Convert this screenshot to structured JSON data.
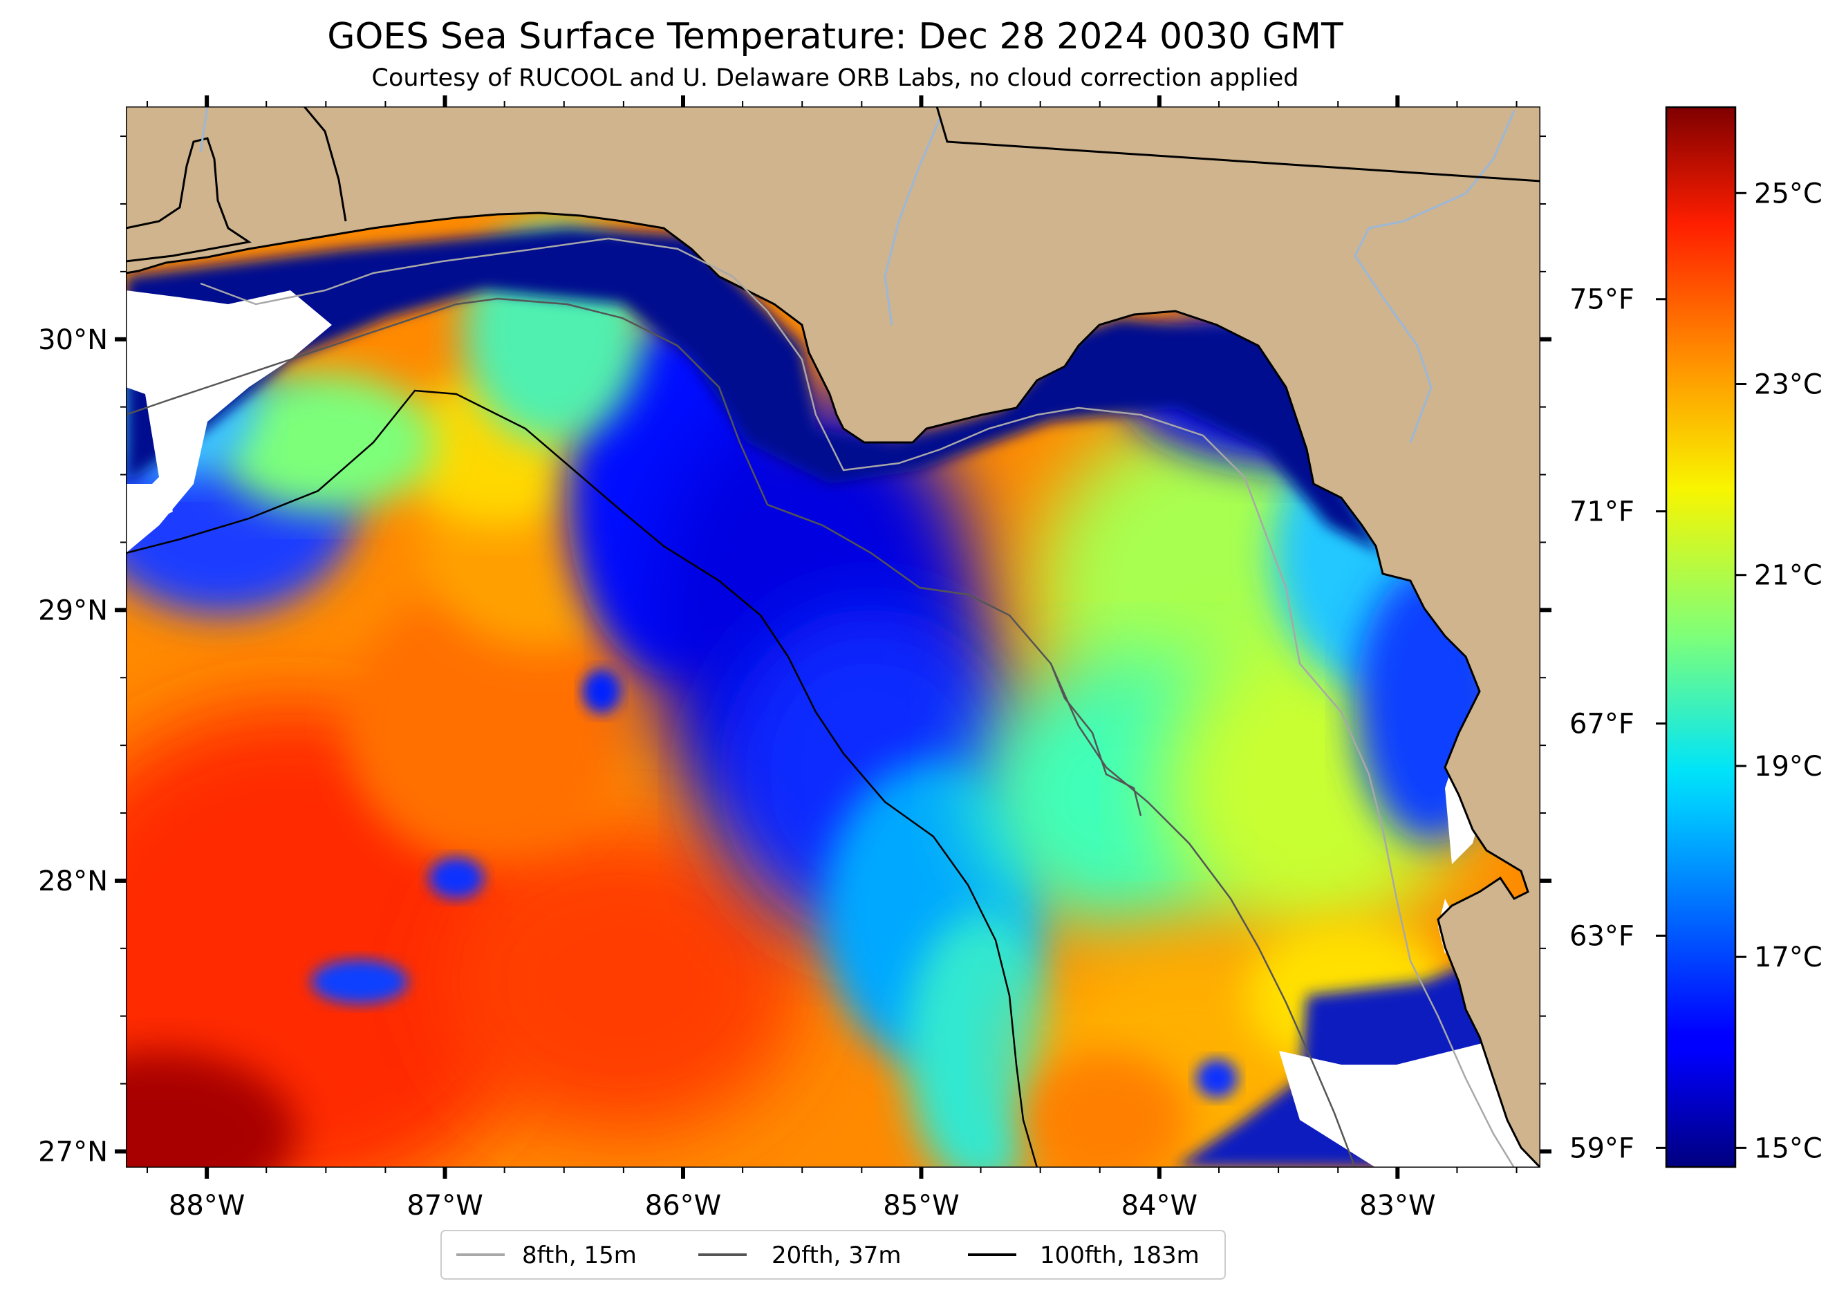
{
  "title": "GOES Sea Surface Temperature: Dec 28 2024 0030 GMT",
  "subtitle": "Courtesy of RUCOOL and U. Delaware ORB Labs, no cloud correction applied",
  "map": {
    "lon_range": [
      -88.34,
      -82.4
    ],
    "lat_range": [
      26.94,
      30.86
    ],
    "lon_ticks": [
      {
        "value": -88,
        "label": "88°W"
      },
      {
        "value": -87,
        "label": "87°W"
      },
      {
        "value": -86,
        "label": "86°W"
      },
      {
        "value": -85,
        "label": "85°W"
      },
      {
        "value": -84,
        "label": "84°W"
      },
      {
        "value": -83,
        "label": "83°W"
      }
    ],
    "lat_ticks": [
      {
        "value": 30,
        "label": "30°N"
      },
      {
        "value": 29,
        "label": "29°N"
      },
      {
        "value": 28,
        "label": "28°N"
      },
      {
        "value": 27,
        "label": "27°N"
      }
    ],
    "colors": {
      "land": "#cfb48e",
      "no_data": "#ffffff",
      "rivers": "#9db7d6",
      "coastline": "#000000"
    }
  },
  "fahrenheit_scale": {
    "ticks": [
      {
        "value_c": 15.0,
        "label": "59°F"
      },
      {
        "value_c": 17.2222,
        "label": "63°F"
      },
      {
        "value_c": 19.4444,
        "label": "67°F"
      },
      {
        "value_c": 21.6667,
        "label": "71°F"
      },
      {
        "value_c": 23.8889,
        "label": "75°F"
      }
    ]
  },
  "colorbar": {
    "colormap": "jet",
    "range_c": [
      14.8,
      25.9
    ],
    "ticks": [
      {
        "value": 15,
        "label": "15°C"
      },
      {
        "value": 17,
        "label": "17°C"
      },
      {
        "value": 19,
        "label": "19°C"
      },
      {
        "value": 21,
        "label": "21°C"
      },
      {
        "value": 23,
        "label": "23°C"
      },
      {
        "value": 25,
        "label": "25°C"
      }
    ]
  },
  "legend": {
    "items": [
      {
        "label": "8fth, 15m",
        "color": "#a8a8a8"
      },
      {
        "label": "20fth, 37m",
        "color": "#555555"
      },
      {
        "label": "100fth, 183m",
        "color": "#000000"
      }
    ]
  }
}
